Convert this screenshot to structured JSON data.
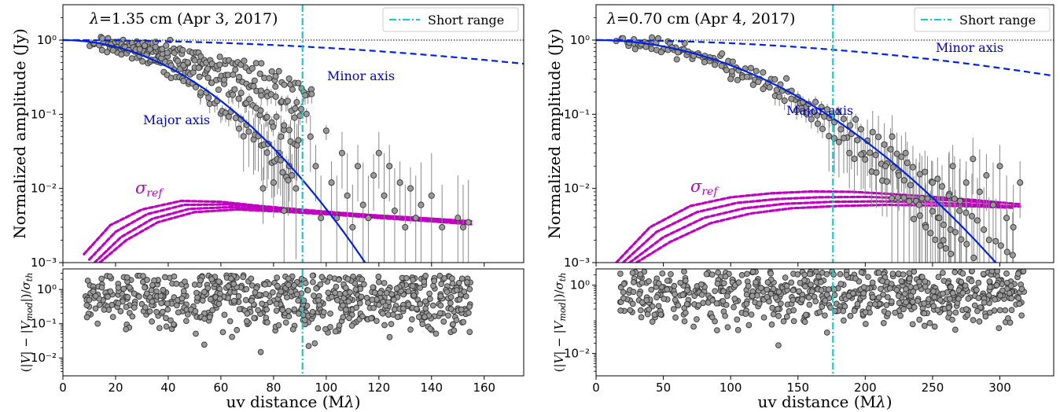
{
  "colors": {
    "model": "#0022dd",
    "short_range": "#22c4c4",
    "sigma": "#c000c0",
    "points_fill": "#999999",
    "points_edge": "#333333",
    "errorbar": "#888888"
  },
  "chart_data": [
    {
      "type": "scatter",
      "panel": "left-top",
      "title": "λ=1.35 cm (Apr 3, 2017)",
      "title_prefix": "λ",
      "title_text": "=1.35 cm (Apr 3, 2017)",
      "ylabel": "Normalized amplitude (Jy)",
      "yscale": "log",
      "xlim": [
        0,
        175
      ],
      "ylim": [
        0.001,
        3
      ],
      "x_ticks": [
        0,
        20,
        40,
        60,
        80,
        100,
        120,
        140,
        160
      ],
      "y_ticks": [
        0.001,
        0.01,
        0.1,
        1
      ],
      "y_tick_labels": [
        "10⁻³",
        "10⁻²",
        "10⁻¹",
        "10⁰"
      ],
      "reference_line": {
        "y": 1.0,
        "style": "dotted"
      },
      "short_range_x": 91,
      "legend": {
        "label": "Short range",
        "position": "top-right"
      },
      "annotations": {
        "minor": "Minor axis",
        "major": "Major axis",
        "sigma": "σ",
        "sigma_sub": "ref"
      },
      "model_minor": {
        "label": "Minor axis",
        "style": "dashed",
        "theta0": 0.0049
      },
      "model_major": {
        "label": "Major axis",
        "style": "solid",
        "theta0": 0.0229
      },
      "observed_tracks": [
        {
          "x_range": [
            10,
            88
          ],
          "theta": 0.024
        },
        {
          "x_range": [
            14,
            90
          ],
          "theta": 0.02
        },
        {
          "x_range": [
            18,
            92
          ],
          "theta": 0.0165
        },
        {
          "x_range": [
            22,
            95
          ],
          "theta": 0.0135
        }
      ],
      "scatter_points": [
        [
          92,
          0.18
        ],
        [
          94,
          0.05
        ],
        [
          96,
          0.02
        ],
        [
          98,
          0.004
        ],
        [
          100,
          0.06
        ],
        [
          102,
          0.012
        ],
        [
          104,
          0.004
        ],
        [
          106,
          0.03
        ],
        [
          108,
          0.008
        ],
        [
          110,
          0.003
        ],
        [
          112,
          0.02
        ],
        [
          114,
          0.006
        ],
        [
          116,
          0.004
        ],
        [
          118,
          0.015
        ],
        [
          120,
          0.03
        ],
        [
          122,
          0.008
        ],
        [
          124,
          0.02
        ],
        [
          126,
          0.005
        ],
        [
          128,
          0.012
        ],
        [
          130,
          0.003
        ],
        [
          132,
          0.01
        ],
        [
          134,
          0.004
        ],
        [
          136,
          0.006
        ],
        [
          140,
          0.008
        ],
        [
          144,
          0.003
        ],
        [
          150,
          0.004
        ],
        [
          152,
          0.003
        ],
        [
          154,
          0.0035
        ],
        [
          88,
          0.09
        ],
        [
          86,
          0.02
        ],
        [
          84,
          0.005
        ],
        [
          82,
          0.03
        ],
        [
          80,
          0.012
        ],
        [
          78,
          0.04
        ],
        [
          76,
          0.01
        ]
      ],
      "sigma_ref_tracks": [
        {
          "x": [
            8,
            18,
            30,
            45,
            60,
            75,
            90,
            105,
            120,
            140,
            155
          ],
          "y": [
            0.0013,
            0.0032,
            0.0052,
            0.0068,
            0.0066,
            0.0058,
            0.0052,
            0.0047,
            0.0043,
            0.0039,
            0.0036
          ]
        },
        {
          "x": [
            10,
            20,
            32,
            46,
            62,
            78,
            92,
            110,
            130,
            150
          ],
          "y": [
            0.0011,
            0.0026,
            0.0045,
            0.006,
            0.0061,
            0.0055,
            0.005,
            0.0045,
            0.0041,
            0.0037
          ]
        },
        {
          "x": [
            12,
            22,
            34,
            48,
            64,
            80,
            96,
            116,
            136,
            154
          ],
          "y": [
            0.001,
            0.0022,
            0.0039,
            0.0053,
            0.0056,
            0.0052,
            0.0047,
            0.0042,
            0.0038,
            0.0034
          ]
        },
        {
          "x": [
            14,
            24,
            36,
            50,
            66,
            82,
            100,
            120,
            140,
            155
          ],
          "y": [
            0.001,
            0.002,
            0.0035,
            0.0048,
            0.0052,
            0.0049,
            0.0045,
            0.004,
            0.0036,
            0.0033
          ]
        }
      ]
    },
    {
      "type": "scatter",
      "panel": "left-bottom",
      "xlabel": "uv distance (Mλ)",
      "xlabel_text": "uv distance (M",
      "xlabel_lambda": "λ",
      "xlabel_close": ")",
      "ylabel": "(|V| − |Vmod|)/σth",
      "ylabel_parts": [
        "(|",
        "V",
        "| − |",
        "V",
        "mod",
        "|)/",
        "σ",
        "th"
      ],
      "yscale": "log",
      "xlim": [
        0,
        175
      ],
      "ylim": [
        0.003,
        4
      ],
      "x_ticks": [
        0,
        20,
        40,
        60,
        80,
        100,
        120,
        140,
        160
      ],
      "x_tick_labels": [
        "0",
        "20",
        "40",
        "60",
        "80",
        "100",
        "120",
        "140",
        "160"
      ],
      "y_ticks": [
        0.01,
        0.1,
        1
      ],
      "y_tick_labels": [
        "10⁻²",
        "10⁻¹",
        "10⁰"
      ],
      "short_range_x": 91,
      "residual_distribution": {
        "x_range": [
          8,
          155
        ],
        "median": 0.5,
        "spread_dex": 0.45,
        "min": 0.004
      }
    },
    {
      "type": "scatter",
      "panel": "right-top",
      "title": "λ=0.70 cm (Apr 4, 2017)",
      "title_prefix": "λ",
      "title_text": "=0.70 cm (Apr 4, 2017)",
      "ylabel": "Normalized amplitude (Jy)",
      "yscale": "log",
      "xlim": [
        0,
        340
      ],
      "ylim": [
        0.001,
        3
      ],
      "x_ticks": [
        0,
        50,
        100,
        150,
        200,
        250,
        300
      ],
      "y_ticks": [
        0.001,
        0.01,
        0.1,
        1
      ],
      "y_tick_labels": [
        "10⁻³",
        "10⁻²",
        "10⁻¹",
        "10⁰"
      ],
      "reference_line": {
        "y": 1.0,
        "style": "dotted"
      },
      "short_range_x": 176,
      "legend": {
        "label": "Short range",
        "position": "top-right"
      },
      "annotations": {
        "minor": "Minor axis",
        "major": "Major axis",
        "sigma": "σ",
        "sigma_sub": "ref"
      },
      "model_minor": {
        "label": "Minor axis",
        "style": "dashed",
        "theta0": 0.0031
      },
      "model_major": {
        "label": "Major axis",
        "style": "solid",
        "theta0": 0.00885
      },
      "observed_tracks": [
        {
          "x_range": [
            15,
            310
          ],
          "theta": 0.0092
        },
        {
          "x_range": [
            20,
            318
          ],
          "theta": 0.0084
        },
        {
          "x_range": [
            25,
            300
          ],
          "theta": 0.0098
        }
      ],
      "scatter_points": [
        [
          230,
          0.03
        ],
        [
          240,
          0.006
        ],
        [
          245,
          0.003
        ],
        [
          250,
          0.012
        ],
        [
          255,
          0.004
        ],
        [
          258,
          0.002
        ],
        [
          262,
          0.008
        ],
        [
          265,
          0.02
        ],
        [
          270,
          0.005
        ],
        [
          275,
          0.012
        ],
        [
          280,
          0.025
        ],
        [
          285,
          0.009
        ],
        [
          290,
          0.015
        ],
        [
          295,
          0.006
        ],
        [
          300,
          0.02
        ],
        [
          305,
          0.004
        ],
        [
          310,
          0.003
        ],
        [
          315,
          0.012
        ],
        [
          225,
          0.015
        ],
        [
          220,
          0.05
        ],
        [
          215,
          0.02
        ],
        [
          100,
          0.3
        ],
        [
          60,
          0.55
        ]
      ],
      "sigma_ref_tracks": [
        {
          "x": [
            15,
            40,
            70,
            100,
            130,
            160,
            190,
            220,
            250,
            280,
            315
          ],
          "y": [
            0.001,
            0.003,
            0.0058,
            0.0076,
            0.0086,
            0.0091,
            0.009,
            0.0084,
            0.0077,
            0.007,
            0.0061
          ]
        },
        {
          "x": [
            20,
            45,
            75,
            105,
            135,
            165,
            200,
            230,
            265,
            300
          ],
          "y": [
            0.001,
            0.0026,
            0.0048,
            0.0064,
            0.0072,
            0.0076,
            0.0077,
            0.0074,
            0.0069,
            0.0063
          ]
        },
        {
          "x": [
            25,
            50,
            80,
            110,
            140,
            175,
            210,
            245,
            280,
            315
          ],
          "y": [
            0.001,
            0.0022,
            0.004,
            0.0054,
            0.0062,
            0.0066,
            0.0067,
            0.0065,
            0.0061,
            0.0057
          ]
        },
        {
          "x": [
            30,
            55,
            85,
            115,
            145,
            180,
            215,
            250,
            285,
            310
          ],
          "y": [
            0.001,
            0.0019,
            0.0034,
            0.0046,
            0.0054,
            0.0058,
            0.006,
            0.0059,
            0.0057,
            0.0055
          ]
        }
      ]
    },
    {
      "type": "scatter",
      "panel": "right-bottom",
      "xlabel": "uv distance (Mλ)",
      "xlabel_text": "uv distance (M",
      "xlabel_lambda": "λ",
      "xlabel_close": ")",
      "ylabel": "(|V| − |Vmod|)/σth",
      "ylabel_parts": [
        "(|",
        "V",
        "| − |",
        "V",
        "mod",
        "|)/",
        "σ",
        "th"
      ],
      "yscale": "log",
      "xlim": [
        0,
        340
      ],
      "ylim": [
        0.0022,
        3
      ],
      "x_ticks": [
        0,
        50,
        100,
        150,
        200,
        250,
        300
      ],
      "x_tick_labels": [
        "0",
        "50",
        "100",
        "150",
        "200",
        "250",
        "300"
      ],
      "y_ticks": [
        0.01,
        1
      ],
      "y_tick_labels": [
        "10⁻²",
        "10⁰"
      ],
      "short_range_x": 176,
      "residual_distribution": {
        "x_range": [
          15,
          318
        ],
        "median": 0.55,
        "spread_dex": 0.4,
        "min": 0.003
      }
    }
  ]
}
